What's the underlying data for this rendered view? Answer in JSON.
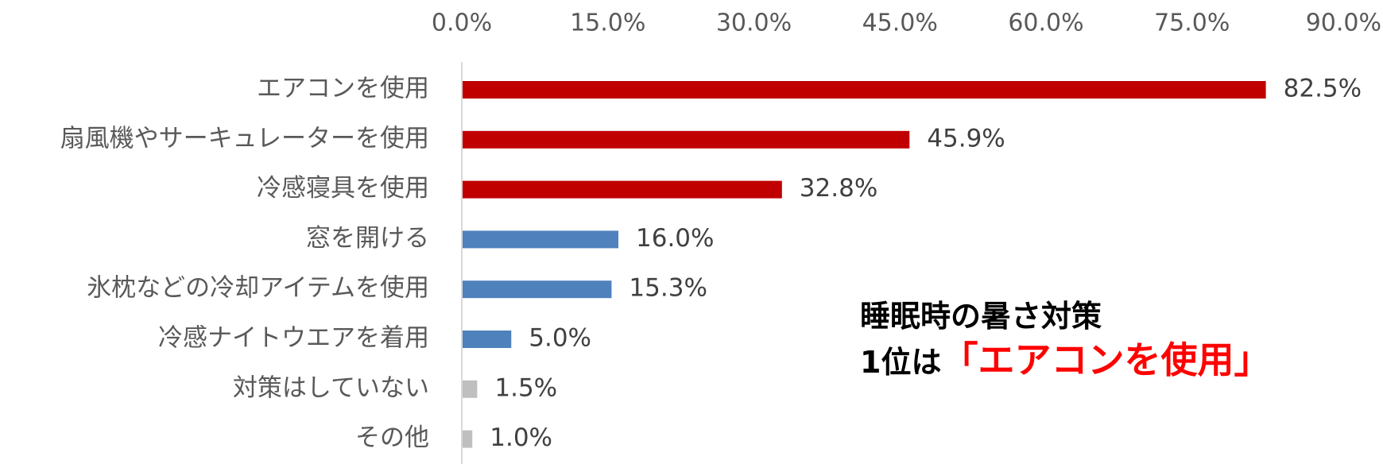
{
  "chart_data": {
    "type": "bar",
    "orientation": "horizontal",
    "categories": [
      "エアコンを使用",
      "扇風機やサーキュレーターを使用",
      "冷感寝具を使用",
      "窓を開ける",
      "氷枕などの冷却アイテムを使用",
      "冷感ナイトウエアを着用",
      "対策はしていない",
      "その他"
    ],
    "values": [
      82.5,
      45.9,
      32.8,
      16.0,
      15.3,
      5.0,
      1.5,
      1.0
    ],
    "data_labels": [
      "82.5%",
      "45.9%",
      "32.8%",
      "16.0%",
      "15.3%",
      "5.0%",
      "1.5%",
      "1.0%"
    ],
    "bar_colors": [
      "#c00000",
      "#c00000",
      "#c00000",
      "#4f81bd",
      "#4f81bd",
      "#4f81bd",
      "#bfbfbf",
      "#bfbfbf"
    ],
    "x_ticks": [
      "0.0%",
      "15.0%",
      "30.0%",
      "45.0%",
      "60.0%",
      "75.0%",
      "90.0%"
    ],
    "xlim": [
      0,
      90
    ],
    "x_axis_position": "top",
    "grid": false,
    "legend": "none"
  },
  "annotation": {
    "line1": "睡眠時の暑さ対策",
    "line2_prefix": "1位は",
    "line2_highlight": "「エアコンを使用」"
  },
  "colors": {
    "highlight": "#ff0000",
    "tick_text": "#595959",
    "axis_line": "#d9d9d9"
  }
}
